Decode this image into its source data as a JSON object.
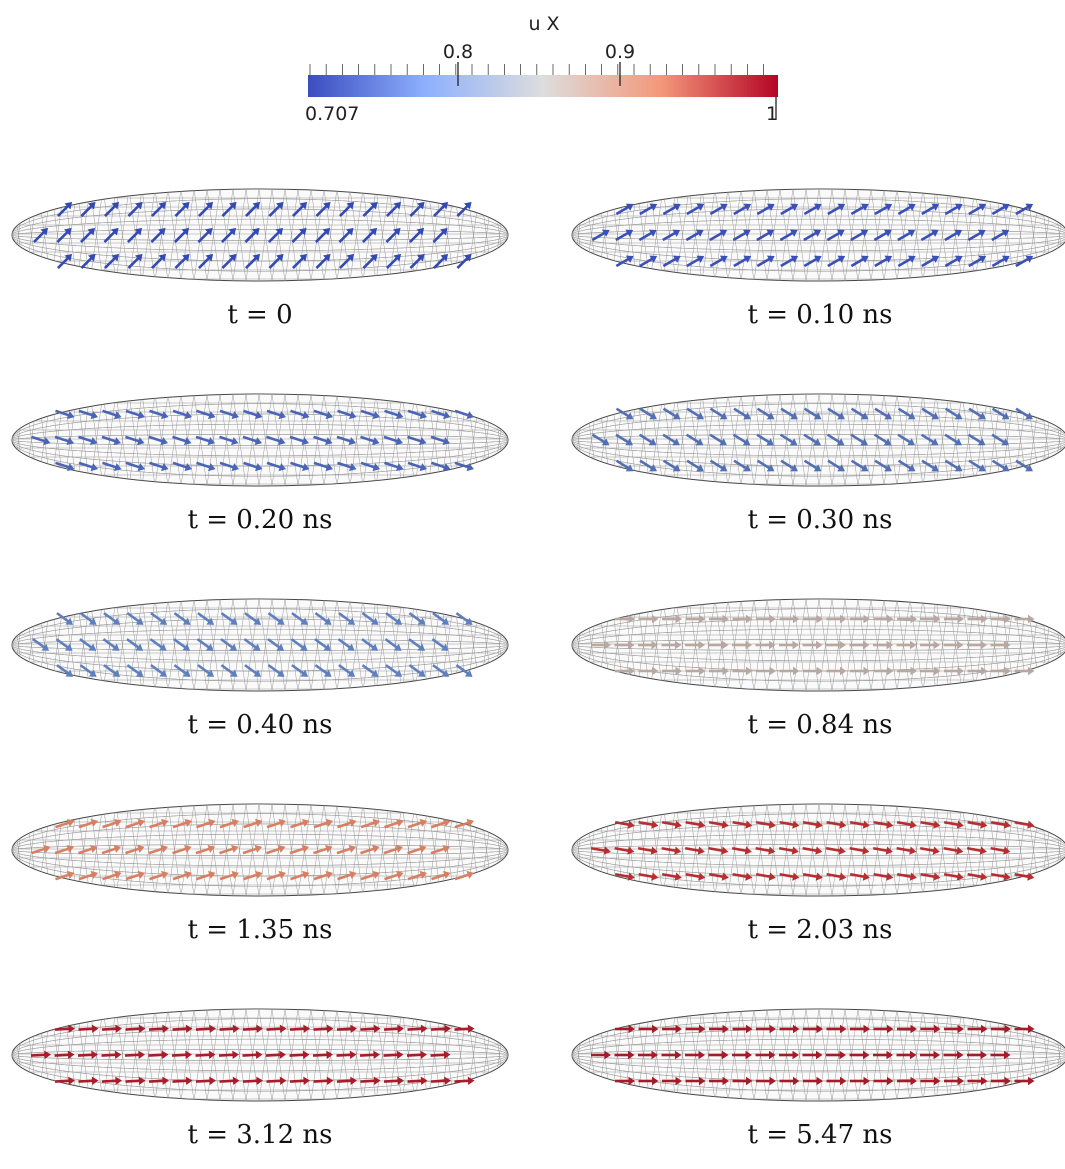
{
  "colorbar": {
    "title": "u X",
    "min_label": "0.707",
    "max_label": "1",
    "tick_labels": [
      "0.8",
      "0.9"
    ],
    "tick_values": [
      0.8,
      0.9
    ],
    "range": [
      0.707,
      1
    ],
    "colormap": [
      "#3b4cc0",
      "#8db0fe",
      "#dddddd",
      "#f4987a",
      "#b40426"
    ]
  },
  "panels": [
    {
      "caption": "t = 0",
      "angle_deg": -45,
      "color": "#3349b4"
    },
    {
      "caption": "t = 0.10 ns",
      "angle_deg": -30,
      "color": "#3a50b8"
    },
    {
      "caption": "t = 0.20 ns",
      "angle_deg": 18,
      "color": "#4a64b6"
    },
    {
      "caption": "t = 0.30 ns",
      "angle_deg": 32,
      "color": "#5470b4"
    },
    {
      "caption": "t = 0.40 ns",
      "angle_deg": 36,
      "color": "#5f7fbe"
    },
    {
      "caption": "t = 0.84 ns",
      "angle_deg": 0,
      "color": "#b8a8a0"
    },
    {
      "caption": "t = 1.35 ns",
      "angle_deg": -18,
      "color": "#d77f62"
    },
    {
      "caption": "t = 2.03 ns",
      "angle_deg": 10,
      "color": "#b72e32"
    },
    {
      "caption": "t = 3.12 ns",
      "angle_deg": -3,
      "color": "#a81d2a"
    },
    {
      "caption": "t = 5.47 ns",
      "angle_deg": 0,
      "color": "#a51b28"
    }
  ]
}
